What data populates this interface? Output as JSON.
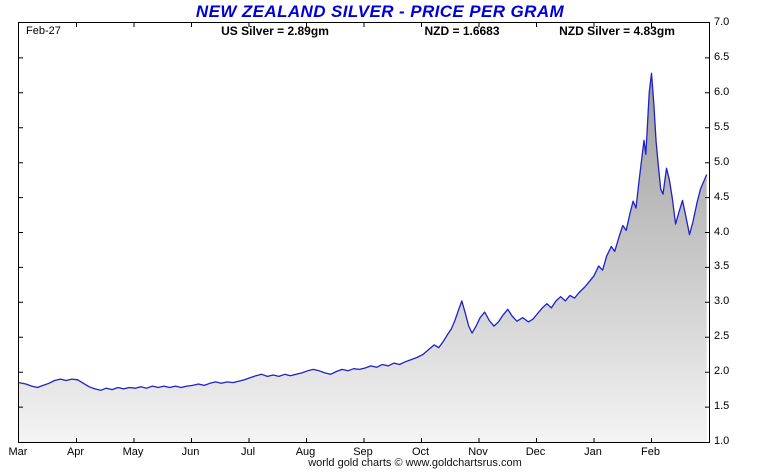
{
  "title": "NEW ZEALAND SILVER - PRICE PER GRAM",
  "footer": {
    "credit": "world gold charts © www.goldchartsrus.com"
  },
  "colors": {
    "title": "#0000d6",
    "line": "#2020cc",
    "fill_top": "#9c9c9c",
    "fill_bottom": "#f4f4f4",
    "border": "#000000"
  },
  "chart_data": {
    "type": "area",
    "title": "NEW ZEALAND SILVER - PRICE PER GRAM",
    "annotations": [
      "Feb-27",
      "US Silver = 2.89gm",
      "NZD = 1.6683",
      "NZD Silver = 4.83gm"
    ],
    "legend": "none",
    "grid": false,
    "x_axis": {
      "unit": "month",
      "tick_labels": [
        "Mar",
        "Apr",
        "May",
        "Jun",
        "Jul",
        "Aug",
        "Sep",
        "Oct",
        "Nov",
        "Dec",
        "Jan",
        "Feb"
      ],
      "range_months": [
        0,
        12
      ]
    },
    "y_axis": {
      "side": "right",
      "min": 1.0,
      "max": 7.0,
      "tick_step": 0.5,
      "tick_labels": [
        "7.0",
        "6.5",
        "6.0",
        "5.5",
        "5.0",
        "4.5",
        "4.0",
        "3.5",
        "3.0",
        "2.5",
        "2.0",
        "1.5",
        "1.0"
      ]
    },
    "series": [
      {
        "name": "NZD Silver price per gram",
        "last_value": 4.83,
        "points": [
          [
            0.0,
            1.85
          ],
          [
            0.12,
            1.83
          ],
          [
            0.22,
            1.8
          ],
          [
            0.32,
            1.78
          ],
          [
            0.42,
            1.81
          ],
          [
            0.52,
            1.84
          ],
          [
            0.62,
            1.88
          ],
          [
            0.72,
            1.9
          ],
          [
            0.82,
            1.88
          ],
          [
            0.92,
            1.9
          ],
          [
            1.02,
            1.89
          ],
          [
            1.12,
            1.84
          ],
          [
            1.22,
            1.79
          ],
          [
            1.32,
            1.76
          ],
          [
            1.42,
            1.74
          ],
          [
            1.52,
            1.77
          ],
          [
            1.62,
            1.75
          ],
          [
            1.72,
            1.78
          ],
          [
            1.82,
            1.76
          ],
          [
            1.92,
            1.78
          ],
          [
            2.02,
            1.77
          ],
          [
            2.12,
            1.79
          ],
          [
            2.22,
            1.77
          ],
          [
            2.32,
            1.8
          ],
          [
            2.42,
            1.78
          ],
          [
            2.52,
            1.8
          ],
          [
            2.62,
            1.78
          ],
          [
            2.72,
            1.8
          ],
          [
            2.82,
            1.78
          ],
          [
            2.92,
            1.8
          ],
          [
            3.02,
            1.81
          ],
          [
            3.12,
            1.83
          ],
          [
            3.22,
            1.81
          ],
          [
            3.32,
            1.84
          ],
          [
            3.42,
            1.86
          ],
          [
            3.52,
            1.84
          ],
          [
            3.62,
            1.86
          ],
          [
            3.72,
            1.85
          ],
          [
            3.82,
            1.87
          ],
          [
            3.92,
            1.89
          ],
          [
            4.02,
            1.92
          ],
          [
            4.12,
            1.95
          ],
          [
            4.22,
            1.97
          ],
          [
            4.32,
            1.94
          ],
          [
            4.42,
            1.96
          ],
          [
            4.52,
            1.94
          ],
          [
            4.62,
            1.97
          ],
          [
            4.72,
            1.95
          ],
          [
            4.82,
            1.97
          ],
          [
            4.92,
            1.99
          ],
          [
            5.02,
            2.02
          ],
          [
            5.12,
            2.04
          ],
          [
            5.22,
            2.02
          ],
          [
            5.32,
            1.99
          ],
          [
            5.42,
            1.97
          ],
          [
            5.52,
            2.01
          ],
          [
            5.62,
            2.04
          ],
          [
            5.72,
            2.02
          ],
          [
            5.82,
            2.05
          ],
          [
            5.92,
            2.04
          ],
          [
            6.02,
            2.06
          ],
          [
            6.12,
            2.09
          ],
          [
            6.22,
            2.07
          ],
          [
            6.32,
            2.11
          ],
          [
            6.42,
            2.09
          ],
          [
            6.52,
            2.13
          ],
          [
            6.62,
            2.11
          ],
          [
            6.72,
            2.15
          ],
          [
            6.82,
            2.18
          ],
          [
            6.92,
            2.21
          ],
          [
            7.02,
            2.25
          ],
          [
            7.12,
            2.32
          ],
          [
            7.22,
            2.39
          ],
          [
            7.3,
            2.35
          ],
          [
            7.38,
            2.44
          ],
          [
            7.46,
            2.55
          ],
          [
            7.52,
            2.62
          ],
          [
            7.58,
            2.74
          ],
          [
            7.64,
            2.88
          ],
          [
            7.7,
            3.02
          ],
          [
            7.76,
            2.85
          ],
          [
            7.82,
            2.66
          ],
          [
            7.88,
            2.56
          ],
          [
            7.95,
            2.66
          ],
          [
            8.02,
            2.78
          ],
          [
            8.1,
            2.86
          ],
          [
            8.18,
            2.74
          ],
          [
            8.26,
            2.66
          ],
          [
            8.34,
            2.72
          ],
          [
            8.42,
            2.82
          ],
          [
            8.5,
            2.9
          ],
          [
            8.58,
            2.8
          ],
          [
            8.66,
            2.73
          ],
          [
            8.76,
            2.78
          ],
          [
            8.86,
            2.72
          ],
          [
            8.94,
            2.76
          ],
          [
            9.02,
            2.84
          ],
          [
            9.1,
            2.92
          ],
          [
            9.18,
            2.98
          ],
          [
            9.26,
            2.92
          ],
          [
            9.34,
            3.02
          ],
          [
            9.42,
            3.08
          ],
          [
            9.5,
            3.02
          ],
          [
            9.58,
            3.1
          ],
          [
            9.66,
            3.06
          ],
          [
            9.74,
            3.14
          ],
          [
            9.84,
            3.22
          ],
          [
            9.92,
            3.3
          ],
          [
            10.0,
            3.38
          ],
          [
            10.08,
            3.52
          ],
          [
            10.15,
            3.46
          ],
          [
            10.22,
            3.66
          ],
          [
            10.3,
            3.8
          ],
          [
            10.36,
            3.73
          ],
          [
            10.44,
            3.95
          ],
          [
            10.5,
            4.1
          ],
          [
            10.56,
            4.03
          ],
          [
            10.62,
            4.25
          ],
          [
            10.68,
            4.45
          ],
          [
            10.73,
            4.35
          ],
          [
            10.78,
            4.72
          ],
          [
            10.83,
            5.05
          ],
          [
            10.87,
            5.32
          ],
          [
            10.9,
            5.12
          ],
          [
            10.93,
            5.55
          ],
          [
            10.96,
            6.0
          ],
          [
            11.0,
            6.28
          ],
          [
            11.04,
            5.85
          ],
          [
            11.08,
            5.3
          ],
          [
            11.12,
            4.95
          ],
          [
            11.16,
            4.62
          ],
          [
            11.2,
            4.55
          ],
          [
            11.26,
            4.92
          ],
          [
            11.31,
            4.76
          ],
          [
            11.36,
            4.5
          ],
          [
            11.42,
            4.12
          ],
          [
            11.48,
            4.3
          ],
          [
            11.54,
            4.46
          ],
          [
            11.6,
            4.22
          ],
          [
            11.66,
            3.97
          ],
          [
            11.72,
            4.15
          ],
          [
            11.79,
            4.42
          ],
          [
            11.85,
            4.62
          ],
          [
            11.96,
            4.83
          ]
        ]
      }
    ]
  }
}
